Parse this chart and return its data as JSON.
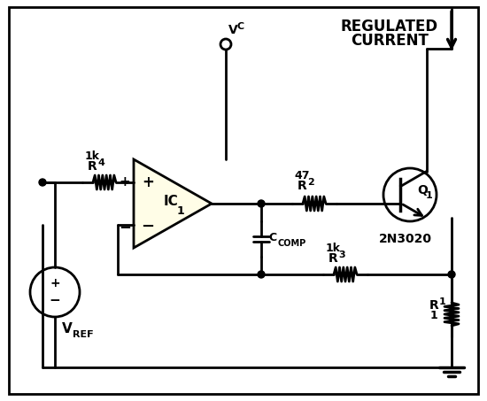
{
  "background_color": "#ffffff",
  "line_color": "#000000",
  "line_width": 2.0,
  "text_color": "#000000",
  "opamp_fill": "#fffde7",
  "vc_label": "V",
  "vc_sub": "C",
  "vref_label": "V",
  "vref_sub": "REF",
  "r1_label": "R",
  "r1_sub": "1",
  "r1_val": "1",
  "r2_label": "R",
  "r2_sub": "2",
  "r2_val": "47",
  "r3_label": "R",
  "r3_sub": "3",
  "r3_val": "1k",
  "r4_label": "R",
  "r4_sub": "4",
  "r4_val": "1k",
  "ic1_label": "IC",
  "ic1_sub": "1",
  "q1_label": "Q",
  "q1_sub": "1",
  "q1_part": "2N3020",
  "ccomp_label": "C",
  "ccomp_sub": "COMP",
  "regulated_text1": "REGULATED",
  "regulated_text2": "CURRENT"
}
